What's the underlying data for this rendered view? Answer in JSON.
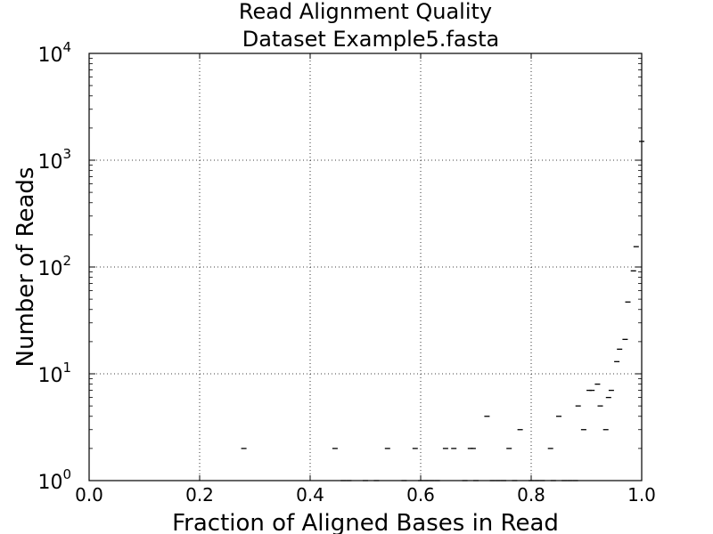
{
  "chart_data": {
    "type": "scatter",
    "title": "Read Alignment Quality",
    "subtitle": "Dataset Example5.fasta",
    "xlabel": "Fraction of Aligned Bases in Read",
    "ylabel": "Number of Reads",
    "xlim": [
      0.0,
      1.0
    ],
    "ylim": [
      1,
      10000
    ],
    "yscale": "log",
    "grid": true,
    "marker": "hline",
    "x_ticks": [
      "0.0",
      "0.2",
      "0.4",
      "0.6",
      "0.8",
      "1.0"
    ],
    "y_ticks": [
      {
        "base": "10",
        "exp": "0"
      },
      {
        "base": "10",
        "exp": "1"
      },
      {
        "base": "10",
        "exp": "2"
      },
      {
        "base": "10",
        "exp": "3"
      },
      {
        "base": "10",
        "exp": "4"
      }
    ],
    "points": [
      {
        "x": 0.28,
        "y": 2
      },
      {
        "x": 0.445,
        "y": 2
      },
      {
        "x": 0.54,
        "y": 2
      },
      {
        "x": 0.59,
        "y": 2
      },
      {
        "x": 0.645,
        "y": 2
      },
      {
        "x": 0.66,
        "y": 2
      },
      {
        "x": 0.69,
        "y": 2
      },
      {
        "x": 0.695,
        "y": 2
      },
      {
        "x": 0.72,
        "y": 4
      },
      {
        "x": 0.76,
        "y": 2
      },
      {
        "x": 0.78,
        "y": 3
      },
      {
        "x": 0.835,
        "y": 2
      },
      {
        "x": 0.85,
        "y": 4
      },
      {
        "x": 0.885,
        "y": 5
      },
      {
        "x": 0.895,
        "y": 3
      },
      {
        "x": 0.905,
        "y": 7
      },
      {
        "x": 0.91,
        "y": 7
      },
      {
        "x": 0.92,
        "y": 8
      },
      {
        "x": 0.925,
        "y": 5
      },
      {
        "x": 0.935,
        "y": 3
      },
      {
        "x": 0.94,
        "y": 6
      },
      {
        "x": 0.945,
        "y": 7
      },
      {
        "x": 0.955,
        "y": 13
      },
      {
        "x": 0.96,
        "y": 17
      },
      {
        "x": 0.97,
        "y": 21
      },
      {
        "x": 0.975,
        "y": 47
      },
      {
        "x": 0.985,
        "y": 92
      },
      {
        "x": 0.99,
        "y": 155
      },
      {
        "x": 1.0,
        "y": 1500
      }
    ],
    "baseline_points_x": [
      0.46,
      0.47,
      0.5,
      0.52,
      0.57,
      0.6,
      0.61,
      0.62,
      0.63,
      0.68,
      0.7,
      0.73,
      0.74,
      0.75,
      0.77,
      0.8,
      0.81,
      0.82,
      0.84,
      0.86,
      0.87,
      0.88
    ]
  }
}
